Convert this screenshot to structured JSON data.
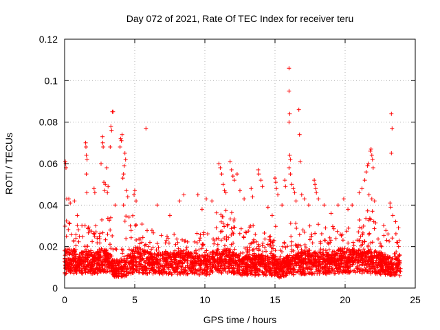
{
  "chart_data": {
    "type": "scatter",
    "title": "Day 072 of 2021, Rate Of TEC Index for receiver teru",
    "xlabel": "GPS time / hours",
    "ylabel": "ROTI / TECUs",
    "xlim": [
      0,
      25
    ],
    "ylim": [
      0,
      0.12
    ],
    "xticks": [
      0,
      5,
      10,
      15,
      20,
      25
    ],
    "xtick_labels": [
      "0",
      "5",
      "10",
      "15",
      "20",
      "25"
    ],
    "yticks": [
      0,
      0.02,
      0.04,
      0.06,
      0.08,
      0.1,
      0.12
    ],
    "ytick_labels": [
      "0",
      "0.02",
      "0.04",
      "0.06",
      "0.08",
      "0.1",
      "0.12"
    ],
    "grid": true,
    "marker": "+",
    "color": "#ff0000",
    "series": [
      {
        "name": "ROTI",
        "profile": {
          "x": [
            0,
            0.3,
            0.6,
            1.0,
            1.5,
            2.0,
            2.5,
            3.0,
            3.3,
            3.6,
            4.0,
            4.3,
            4.7,
            5.0,
            5.5,
            6.0,
            7.0,
            8.0,
            9.0,
            10.0,
            10.5,
            11.0,
            11.5,
            12.0,
            12.5,
            13.0,
            13.5,
            14.0,
            14.5,
            15.0,
            15.3,
            15.6,
            16.0,
            16.5,
            17.0,
            17.5,
            18.0,
            18.5,
            19.0,
            19.5,
            20.0,
            20.5,
            21.0,
            21.5,
            22.0,
            22.5,
            23.0,
            23.3,
            23.6,
            23.9
          ],
          "base": [
            0.012,
            0.014,
            0.013,
            0.012,
            0.013,
            0.012,
            0.013,
            0.013,
            0.011,
            0.009,
            0.009,
            0.01,
            0.012,
            0.014,
            0.013,
            0.012,
            0.012,
            0.012,
            0.012,
            0.011,
            0.012,
            0.013,
            0.013,
            0.012,
            0.011,
            0.011,
            0.011,
            0.011,
            0.011,
            0.011,
            0.009,
            0.01,
            0.011,
            0.012,
            0.012,
            0.012,
            0.012,
            0.012,
            0.012,
            0.013,
            0.013,
            0.013,
            0.013,
            0.013,
            0.012,
            0.012,
            0.011,
            0.01,
            0.011,
            0.012
          ],
          "spread": [
            0.018,
            0.025,
            0.02,
            0.018,
            0.022,
            0.016,
            0.022,
            0.024,
            0.024,
            0.01,
            0.01,
            0.028,
            0.022,
            0.022,
            0.018,
            0.016,
            0.016,
            0.016,
            0.016,
            0.016,
            0.02,
            0.026,
            0.03,
            0.024,
            0.018,
            0.018,
            0.02,
            0.02,
            0.018,
            0.02,
            0.016,
            0.018,
            0.022,
            0.02,
            0.018,
            0.018,
            0.02,
            0.018,
            0.018,
            0.018,
            0.018,
            0.02,
            0.022,
            0.024,
            0.028,
            0.02,
            0.018,
            0.018,
            0.016,
            0.012
          ]
        },
        "points": [
          {
            "x": 0.05,
            "y": 0.061
          },
          {
            "x": 0.08,
            "y": 0.06
          },
          {
            "x": 0.1,
            "y": 0.058
          },
          {
            "x": 0.15,
            "y": 0.043
          },
          {
            "x": 0.3,
            "y": 0.043
          },
          {
            "x": 0.4,
            "y": 0.041
          },
          {
            "x": 0.7,
            "y": 0.042
          },
          {
            "x": 0.9,
            "y": 0.035
          },
          {
            "x": 1.5,
            "y": 0.07
          },
          {
            "x": 1.52,
            "y": 0.068
          },
          {
            "x": 1.55,
            "y": 0.064
          },
          {
            "x": 1.6,
            "y": 0.062
          },
          {
            "x": 1.55,
            "y": 0.055
          },
          {
            "x": 1.58,
            "y": 0.046
          },
          {
            "x": 2.1,
            "y": 0.048
          },
          {
            "x": 2.15,
            "y": 0.046
          },
          {
            "x": 2.7,
            "y": 0.073
          },
          {
            "x": 2.72,
            "y": 0.07
          },
          {
            "x": 2.75,
            "y": 0.068
          },
          {
            "x": 2.6,
            "y": 0.06
          },
          {
            "x": 2.8,
            "y": 0.051
          },
          {
            "x": 2.9,
            "y": 0.05
          },
          {
            "x": 2.85,
            "y": 0.047
          },
          {
            "x": 3.0,
            "y": 0.058
          },
          {
            "x": 3.3,
            "y": 0.078
          },
          {
            "x": 3.35,
            "y": 0.076
          },
          {
            "x": 3.25,
            "y": 0.068
          },
          {
            "x": 3.4,
            "y": 0.085
          },
          {
            "x": 3.45,
            "y": 0.085
          },
          {
            "x": 3.1,
            "y": 0.049
          },
          {
            "x": 3.05,
            "y": 0.046
          },
          {
            "x": 3.6,
            "y": 0.04
          },
          {
            "x": 4.0,
            "y": 0.072
          },
          {
            "x": 4.05,
            "y": 0.071
          },
          {
            "x": 4.1,
            "y": 0.074
          },
          {
            "x": 3.95,
            "y": 0.068
          },
          {
            "x": 4.3,
            "y": 0.065
          },
          {
            "x": 4.35,
            "y": 0.062
          },
          {
            "x": 4.25,
            "y": 0.059
          },
          {
            "x": 4.2,
            "y": 0.055
          },
          {
            "x": 4.15,
            "y": 0.053
          },
          {
            "x": 4.4,
            "y": 0.047
          },
          {
            "x": 4.5,
            "y": 0.044
          },
          {
            "x": 4.2,
            "y": 0.04
          },
          {
            "x": 5.0,
            "y": 0.047
          },
          {
            "x": 4.95,
            "y": 0.045
          },
          {
            "x": 5.1,
            "y": 0.042
          },
          {
            "x": 5.8,
            "y": 0.077
          },
          {
            "x": 6.6,
            "y": 0.04
          },
          {
            "x": 7.5,
            "y": 0.035
          },
          {
            "x": 8.2,
            "y": 0.042
          },
          {
            "x": 8.5,
            "y": 0.045
          },
          {
            "x": 9.5,
            "y": 0.045
          },
          {
            "x": 9.8,
            "y": 0.038
          },
          {
            "x": 10.1,
            "y": 0.043
          },
          {
            "x": 10.5,
            "y": 0.042
          },
          {
            "x": 11.0,
            "y": 0.06
          },
          {
            "x": 11.1,
            "y": 0.058
          },
          {
            "x": 11.2,
            "y": 0.055
          },
          {
            "x": 11.3,
            "y": 0.05
          },
          {
            "x": 11.4,
            "y": 0.047
          },
          {
            "x": 11.5,
            "y": 0.046
          },
          {
            "x": 11.8,
            "y": 0.061
          },
          {
            "x": 11.9,
            "y": 0.057
          },
          {
            "x": 12.0,
            "y": 0.054
          },
          {
            "x": 12.1,
            "y": 0.052
          },
          {
            "x": 12.3,
            "y": 0.055
          },
          {
            "x": 12.5,
            "y": 0.047
          },
          {
            "x": 12.8,
            "y": 0.043
          },
          {
            "x": 13.3,
            "y": 0.048
          },
          {
            "x": 13.4,
            "y": 0.044
          },
          {
            "x": 13.8,
            "y": 0.057
          },
          {
            "x": 13.85,
            "y": 0.055
          },
          {
            "x": 14.0,
            "y": 0.052
          },
          {
            "x": 14.1,
            "y": 0.049
          },
          {
            "x": 14.5,
            "y": 0.039
          },
          {
            "x": 14.8,
            "y": 0.035
          },
          {
            "x": 15.0,
            "y": 0.053
          },
          {
            "x": 15.05,
            "y": 0.051
          },
          {
            "x": 15.1,
            "y": 0.048
          },
          {
            "x": 15.2,
            "y": 0.045
          },
          {
            "x": 15.5,
            "y": 0.04
          },
          {
            "x": 15.7,
            "y": 0.052
          },
          {
            "x": 15.75,
            "y": 0.049
          },
          {
            "x": 16.0,
            "y": 0.106
          },
          {
            "x": 16.0,
            "y": 0.095
          },
          {
            "x": 16.05,
            "y": 0.084
          },
          {
            "x": 16.0,
            "y": 0.08
          },
          {
            "x": 16.05,
            "y": 0.064
          },
          {
            "x": 16.1,
            "y": 0.062
          },
          {
            "x": 16.0,
            "y": 0.058
          },
          {
            "x": 16.1,
            "y": 0.055
          },
          {
            "x": 16.2,
            "y": 0.05
          },
          {
            "x": 16.3,
            "y": 0.048
          },
          {
            "x": 16.4,
            "y": 0.046
          },
          {
            "x": 16.5,
            "y": 0.042
          },
          {
            "x": 16.7,
            "y": 0.086
          },
          {
            "x": 16.75,
            "y": 0.074
          },
          {
            "x": 16.8,
            "y": 0.061
          },
          {
            "x": 16.9,
            "y": 0.045
          },
          {
            "x": 17.1,
            "y": 0.043
          },
          {
            "x": 17.4,
            "y": 0.04
          },
          {
            "x": 17.8,
            "y": 0.052
          },
          {
            "x": 17.85,
            "y": 0.05
          },
          {
            "x": 17.9,
            "y": 0.048
          },
          {
            "x": 17.95,
            "y": 0.046
          },
          {
            "x": 18.1,
            "y": 0.043
          },
          {
            "x": 18.5,
            "y": 0.04
          },
          {
            "x": 19.0,
            "y": 0.036
          },
          {
            "x": 19.5,
            "y": 0.04
          },
          {
            "x": 19.9,
            "y": 0.043
          },
          {
            "x": 20.2,
            "y": 0.038
          },
          {
            "x": 20.5,
            "y": 0.04
          },
          {
            "x": 21.0,
            "y": 0.046
          },
          {
            "x": 21.2,
            "y": 0.048
          },
          {
            "x": 21.4,
            "y": 0.052
          },
          {
            "x": 21.5,
            "y": 0.056
          },
          {
            "x": 21.6,
            "y": 0.059
          },
          {
            "x": 21.65,
            "y": 0.06
          },
          {
            "x": 21.8,
            "y": 0.066
          },
          {
            "x": 21.85,
            "y": 0.067
          },
          {
            "x": 21.9,
            "y": 0.064
          },
          {
            "x": 21.95,
            "y": 0.062
          },
          {
            "x": 22.0,
            "y": 0.058
          },
          {
            "x": 21.7,
            "y": 0.045
          },
          {
            "x": 21.9,
            "y": 0.043
          },
          {
            "x": 22.1,
            "y": 0.042
          },
          {
            "x": 23.3,
            "y": 0.084
          },
          {
            "x": 23.35,
            "y": 0.077
          },
          {
            "x": 23.3,
            "y": 0.065
          },
          {
            "x": 23.2,
            "y": 0.041
          },
          {
            "x": 23.25,
            "y": 0.039
          },
          {
            "x": 23.4,
            "y": 0.035
          },
          {
            "x": 23.6,
            "y": 0.032
          },
          {
            "x": 23.8,
            "y": 0.029
          },
          {
            "x": 23.9,
            "y": 0.006
          }
        ]
      }
    ]
  }
}
